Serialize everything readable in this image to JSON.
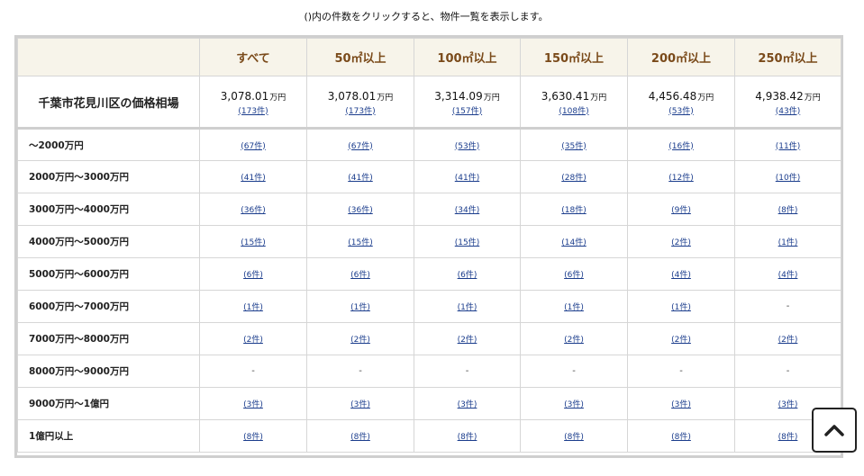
{
  "note": "()内の件数をクリックすると、物件一覧を表示します。",
  "header": {
    "columns": [
      "すべて",
      "50㎡以上",
      "100㎡以上",
      "150㎡以上",
      "200㎡以上",
      "250㎡以上"
    ]
  },
  "summary": {
    "label": "千葉市花見川区の価格相場",
    "unit": "万円",
    "cells": [
      {
        "price": "3,078.01",
        "count": "(173件)"
      },
      {
        "price": "3,078.01",
        "count": "(173件)"
      },
      {
        "price": "3,314.09",
        "count": "(157件)"
      },
      {
        "price": "3,630.41",
        "count": "(108件)"
      },
      {
        "price": "4,456.48",
        "count": "(53件)"
      },
      {
        "price": "4,938.42",
        "count": "(43件)"
      }
    ]
  },
  "rows": [
    {
      "label": "～2000万円",
      "cells": [
        "(67件)",
        "(67件)",
        "(53件)",
        "(35件)",
        "(16件)",
        "(11件)"
      ]
    },
    {
      "label": "2000万円～3000万円",
      "cells": [
        "(41件)",
        "(41件)",
        "(41件)",
        "(28件)",
        "(12件)",
        "(10件)"
      ]
    },
    {
      "label": "3000万円～4000万円",
      "cells": [
        "(36件)",
        "(36件)",
        "(34件)",
        "(18件)",
        "(9件)",
        "(8件)"
      ]
    },
    {
      "label": "4000万円～5000万円",
      "cells": [
        "(15件)",
        "(15件)",
        "(15件)",
        "(14件)",
        "(2件)",
        "(1件)"
      ]
    },
    {
      "label": "5000万円～6000万円",
      "cells": [
        "(6件)",
        "(6件)",
        "(6件)",
        "(6件)",
        "(4件)",
        "(4件)"
      ]
    },
    {
      "label": "6000万円～7000万円",
      "cells": [
        "(1件)",
        "(1件)",
        "(1件)",
        "(1件)",
        "(1件)",
        "-"
      ]
    },
    {
      "label": "7000万円～8000万円",
      "cells": [
        "(2件)",
        "(2件)",
        "(2件)",
        "(2件)",
        "(2件)",
        "(2件)"
      ]
    },
    {
      "label": "8000万円～9000万円",
      "cells": [
        "-",
        "-",
        "-",
        "-",
        "-",
        "-"
      ]
    },
    {
      "label": "9000万円～1億円",
      "cells": [
        "(3件)",
        "(3件)",
        "(3件)",
        "(3件)",
        "(3件)",
        "(3件)"
      ]
    },
    {
      "label": "1億円以上",
      "cells": [
        "(8件)",
        "(8件)",
        "(8件)",
        "(8件)",
        "(8件)",
        "(8件)"
      ]
    }
  ],
  "icons": {
    "scroll_top": "chevron-up-icon"
  }
}
